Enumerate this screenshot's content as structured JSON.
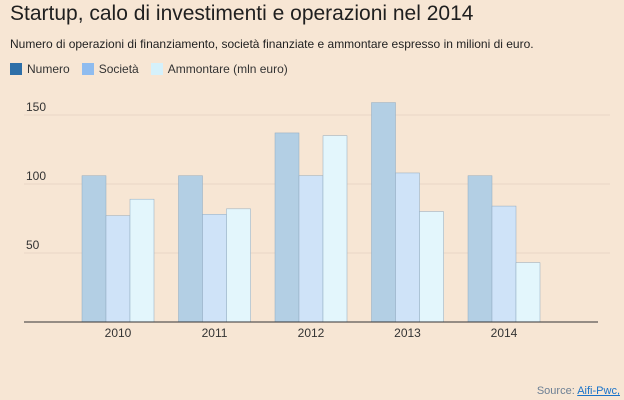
{
  "chart_data": {
    "type": "bar",
    "title": "Startup, calo di investimenti e operazioni nel 2014",
    "subtitle": "Numero di operazioni di finanziamento, società finanziate e ammontare espresso in milioni di euro.",
    "categories": [
      "2010",
      "2011",
      "2012",
      "2013",
      "2014"
    ],
    "series": [
      {
        "name": "Numero",
        "values": [
          106,
          106,
          137,
          159,
          106
        ],
        "color": "#b3cfe4",
        "legend_color": "#2e6fa8"
      },
      {
        "name": "Società",
        "values": [
          77,
          78,
          106,
          108,
          84
        ],
        "color": "#cfe3f8",
        "legend_color": "#8fbcef"
      },
      {
        "name": "Ammontare (mln euro)",
        "values": [
          89,
          82,
          135,
          80,
          43
        ],
        "color": "#e3f6fc",
        "legend_color": "#d5f1fb"
      }
    ],
    "yticks": [
      50,
      100,
      150
    ],
    "ylim": [
      0,
      175
    ],
    "xlabel": "",
    "ylabel": ""
  },
  "source": {
    "label": "Source:",
    "link": "Aifi-Pwc,"
  }
}
